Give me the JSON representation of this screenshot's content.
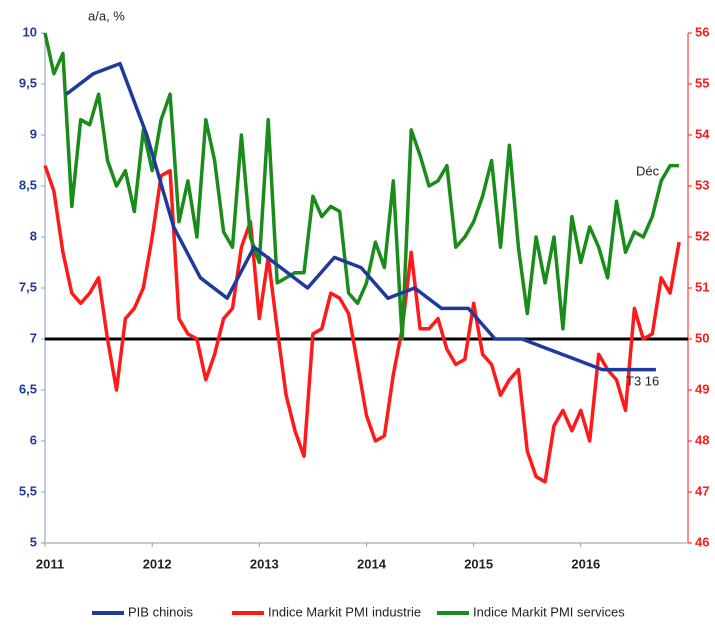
{
  "chart_data": {
    "type": "line",
    "annotations": [
      "a/a, %",
      "Déc",
      "T3 16"
    ],
    "xlim": [
      2011,
      2017
    ],
    "xticks": [
      2011,
      2012,
      2013,
      2014,
      2015,
      2016
    ],
    "ylim": [
      5,
      10
    ],
    "yticks": [
      5,
      {
        "value": 5.5,
        "label": "5,5"
      },
      6,
      {
        "value": 6.5,
        "label": "6,5"
      },
      7,
      {
        "value": 7.5,
        "label": "7,5"
      },
      8,
      {
        "value": 8.5,
        "label": "8,5"
      },
      9,
      {
        "value": 9.5,
        "label": "9,5"
      },
      10
    ],
    "y2lim": [
      46,
      56
    ],
    "y2ticks": [
      46,
      47,
      48,
      49,
      50,
      51,
      52,
      53,
      54,
      55,
      56
    ],
    "hline": 7,
    "hline_color": "#000000",
    "legend": "bottom",
    "grid": false,
    "x": [
      2011,
      2011.083,
      2011.167,
      2011.25,
      2011.333,
      2011.417,
      2011.5,
      2011.583,
      2011.667,
      2011.75,
      2011.833,
      2011.917,
      2012,
      2012.083,
      2012.167,
      2012.25,
      2012.333,
      2012.417,
      2012.5,
      2012.583,
      2012.667,
      2012.75,
      2012.833,
      2012.917,
      2013,
      2013.083,
      2013.167,
      2013.25,
      2013.333,
      2013.417,
      2013.5,
      2013.583,
      2013.667,
      2013.75,
      2013.833,
      2013.917,
      2014,
      2014.083,
      2014.167,
      2014.25,
      2014.333,
      2014.417,
      2014.5,
      2014.583,
      2014.667,
      2014.75,
      2014.833,
      2014.917,
      2015,
      2015.083,
      2015.167,
      2015.25,
      2015.333,
      2015.417,
      2015.5,
      2015.583,
      2015.667,
      2015.75,
      2015.833,
      2015.917,
      2016,
      2016.083,
      2016.167,
      2016.25,
      2016.333,
      2016.417,
      2016.5,
      2016.583,
      2016.667,
      2016.75,
      2016.833,
      2016.917
    ],
    "series": [
      {
        "name": "PIB chinois",
        "color": "#1f3a9e",
        "x": [
          2011.2,
          2011.45,
          2011.7,
          2011.95,
          2012.2,
          2012.45,
          2012.7,
          2012.95,
          2013.2,
          2013.45,
          2013.7,
          2013.95,
          2014.2,
          2014.45,
          2014.7,
          2014.95,
          2015.2,
          2015.45,
          2015.7,
          2015.95,
          2016.2,
          2016.45,
          2016.7
        ],
        "values": [
          9.4,
          9.6,
          9.7,
          9.0,
          8.1,
          7.6,
          7.4,
          7.9,
          7.7,
          7.5,
          7.8,
          7.7,
          7.4,
          7.5,
          7.3,
          7.3,
          7.0,
          7.0,
          6.9,
          6.8,
          6.7,
          6.7,
          6.7
        ]
      },
      {
        "name": "Indice Markit PMI industrie",
        "color": "#ff1a1a",
        "axis": "y2",
        "values": [
          53.4,
          52.9,
          51.7,
          50.9,
          50.7,
          50.9,
          51.2,
          50.0,
          49.0,
          50.4,
          50.6,
          51.0,
          52.0,
          53.2,
          53.3,
          50.4,
          50.1,
          50.0,
          49.2,
          49.7,
          50.4,
          50.6,
          51.8,
          52.3,
          50.4,
          51.6,
          50.2,
          48.9,
          48.2,
          47.7,
          50.1,
          50.2,
          50.9,
          50.8,
          50.5,
          49.5,
          48.5,
          48.0,
          48.1,
          49.3,
          50.2,
          51.7,
          50.2,
          50.2,
          50.4,
          49.8,
          49.5,
          49.6,
          50.7,
          49.7,
          49.5,
          48.9,
          49.2,
          49.4,
          47.8,
          47.3,
          47.2,
          48.3,
          48.6,
          48.2,
          48.6,
          48.0,
          49.7,
          49.4,
          49.2,
          48.6,
          50.6,
          50.0,
          50.1,
          51.2,
          50.9,
          51.9
        ]
      },
      {
        "name": "Indice Markit PMI services",
        "color": "#1a8c1a",
        "axis": "y2",
        "values": [
          56.0,
          55.2,
          55.6,
          52.6,
          54.3,
          54.2,
          54.8,
          53.5,
          53.0,
          53.3,
          52.5,
          54.1,
          53.3,
          54.3,
          54.8,
          52.3,
          53.1,
          52.0,
          54.3,
          53.5,
          52.1,
          51.8,
          54.0,
          52.0,
          51.5,
          54.3,
          51.1,
          51.2,
          51.3,
          51.3,
          52.8,
          52.4,
          52.6,
          52.5,
          50.9,
          50.7,
          51.1,
          51.9,
          51.4,
          53.1,
          50.0,
          54.1,
          53.6,
          53.0,
          53.1,
          53.4,
          51.8,
          52.0,
          52.3,
          52.8,
          53.5,
          51.8,
          53.8,
          51.8,
          50.5,
          52.0,
          51.1,
          52.0,
          50.2,
          52.4,
          51.5,
          52.2,
          51.8,
          51.2,
          52.7,
          51.7,
          52.1,
          52.0,
          52.4,
          53.1,
          53.4,
          53.4
        ]
      }
    ]
  }
}
